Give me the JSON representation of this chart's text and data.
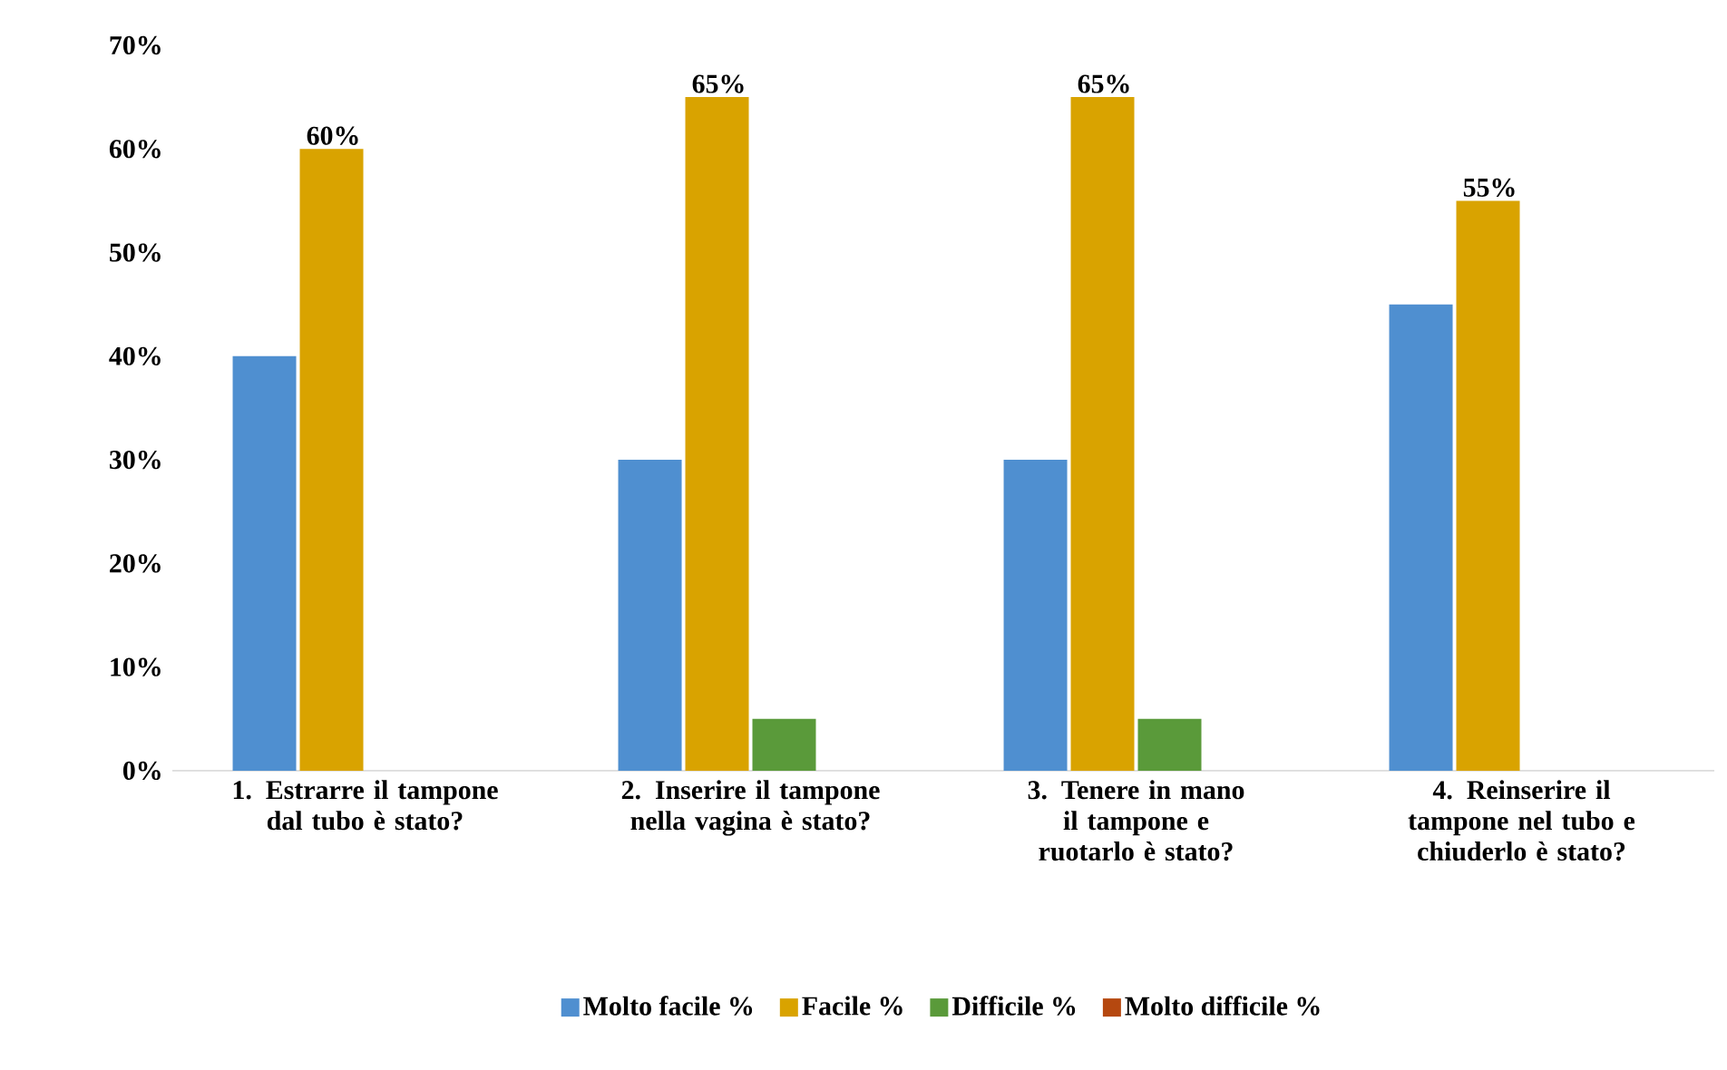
{
  "chart_data": {
    "type": "bar",
    "categories": [
      "1. Estrarre il tampone dal tubo è stato?",
      "2. Inserire il tampone nella vagina è stato?",
      "3. Tenere in mano il tampone e ruotarlo è stato?",
      "4. Reinserire il tampone nel tubo e chiuderlo è stato?"
    ],
    "series": [
      {
        "name": "Molto facile %",
        "color": "#4f8fd0",
        "values": [
          40,
          30,
          30,
          45
        ]
      },
      {
        "name": "Facile %",
        "color": "#d9a300",
        "values": [
          60,
          65,
          65,
          55
        ],
        "value_labels": [
          "60%",
          "65%",
          "65%",
          "55%"
        ]
      },
      {
        "name": "Difficile %",
        "color": "#5a9a3a",
        "values": [
          0,
          5,
          5,
          0
        ]
      },
      {
        "name": "Molto difficile %",
        "color": "#b5480f",
        "values": [
          0,
          0,
          0,
          0
        ]
      }
    ],
    "ylim": [
      0,
      70
    ],
    "yticks": [
      {
        "value": 0,
        "label": "0%"
      },
      {
        "value": 10,
        "label": "10%"
      },
      {
        "value": 20,
        "label": "20%"
      },
      {
        "value": 30,
        "label": "30%"
      },
      {
        "value": 40,
        "label": "40%"
      },
      {
        "value": 50,
        "label": "50%"
      },
      {
        "value": 60,
        "label": "60%"
      },
      {
        "value": 70,
        "label": "70%"
      }
    ],
    "grid": false,
    "legend": "bottom"
  }
}
